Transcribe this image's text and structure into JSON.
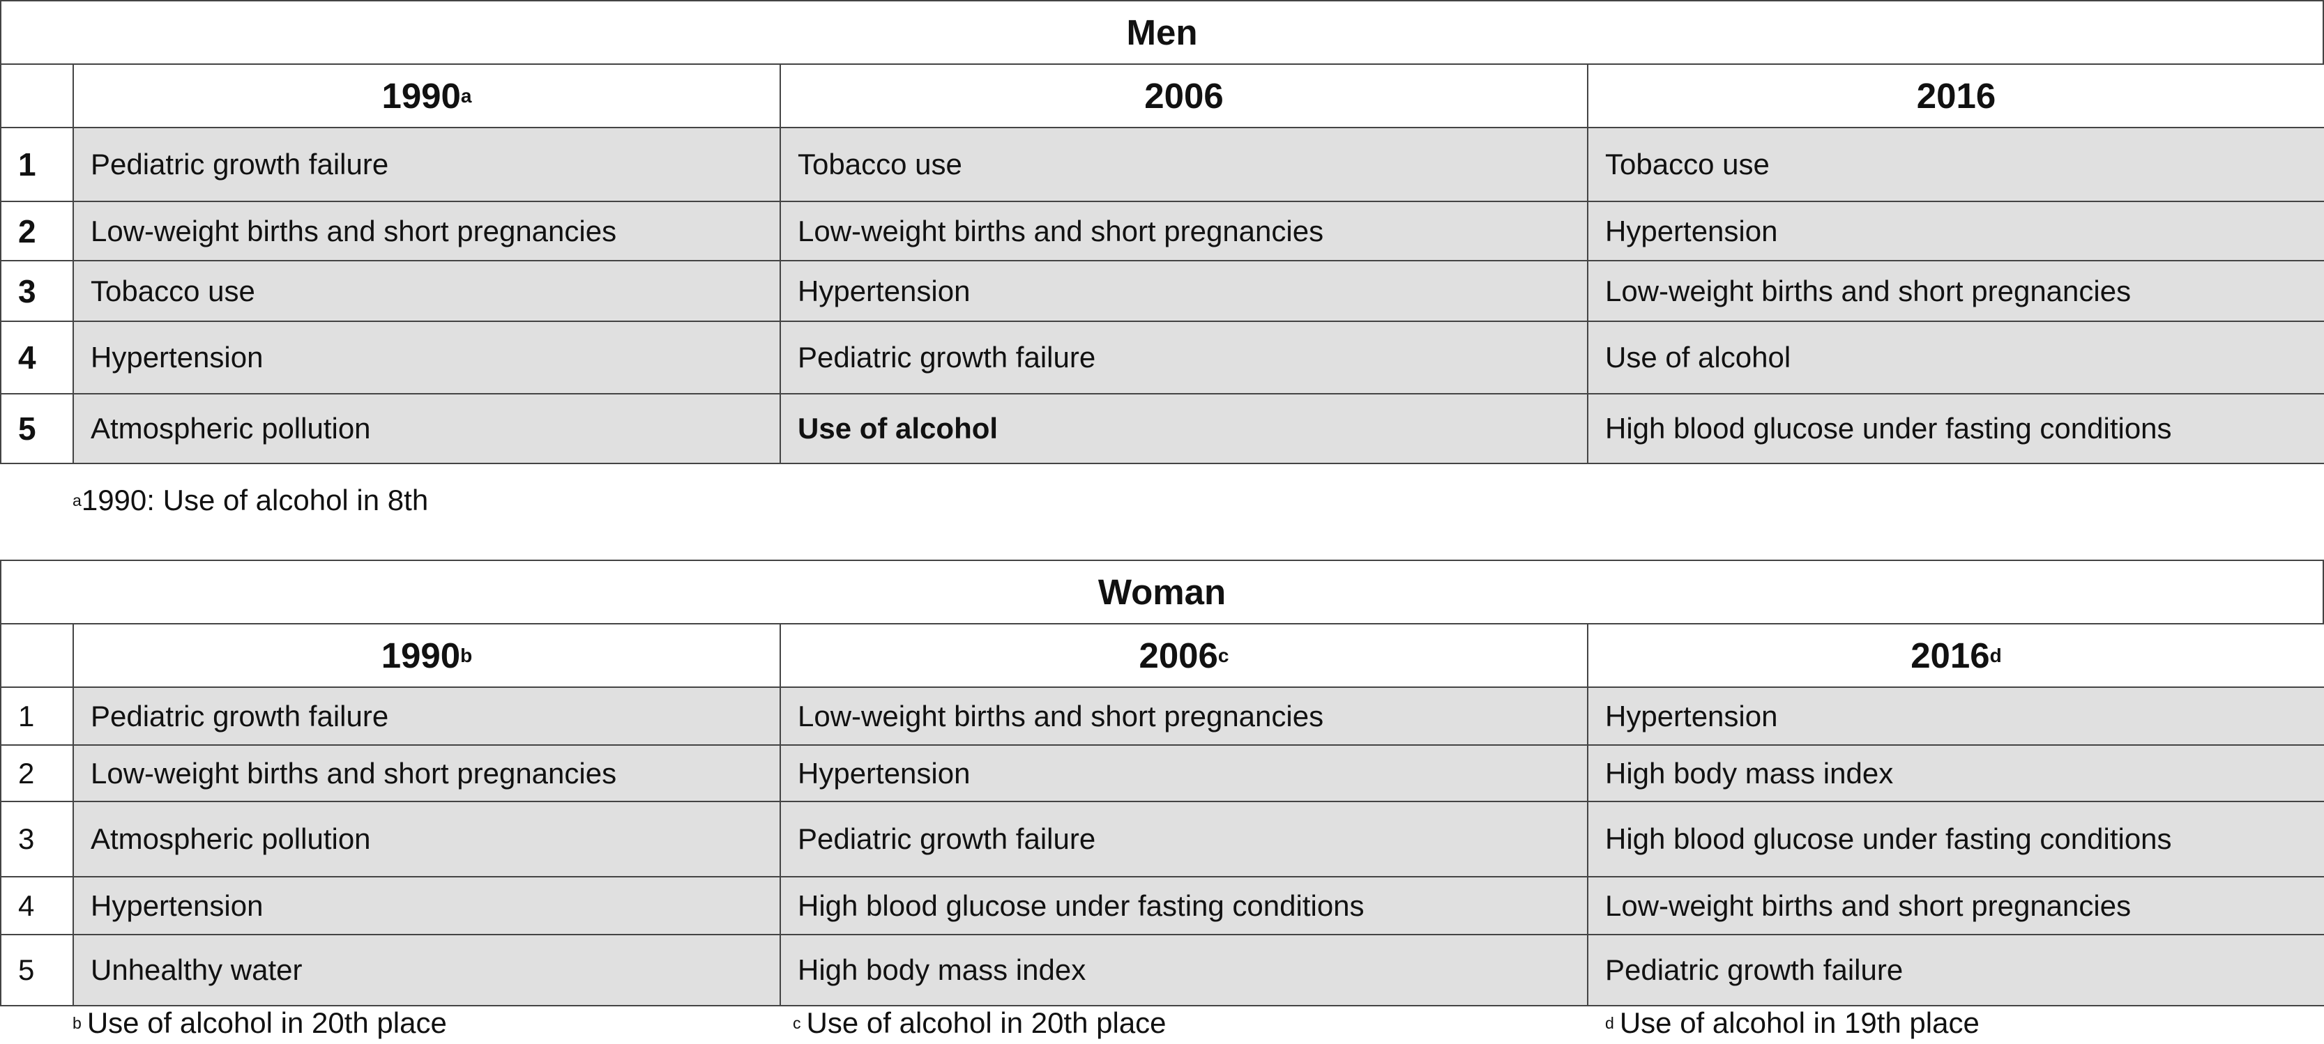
{
  "tables": [
    {
      "title": "Men",
      "rank_bold": true,
      "header": [
        {
          "text": "1990",
          "sup": "a"
        },
        {
          "text": "2006"
        },
        {
          "text": "2016"
        }
      ],
      "rows": [
        {
          "rank": "1",
          "cells": [
            {
              "text": "Pediatric growth failure"
            },
            {
              "text": "Tobacco use"
            },
            {
              "text": "Tobacco use"
            }
          ]
        },
        {
          "rank": "2",
          "cells": [
            {
              "text": "Low-weight births and short pregnancies"
            },
            {
              "text": "Low-weight births and short pregnancies"
            },
            {
              "text": "Hypertension"
            }
          ]
        },
        {
          "rank": "3",
          "cells": [
            {
              "text": "Tobacco use"
            },
            {
              "text": "Hypertension"
            },
            {
              "text": "Low-weight births and short pregnancies"
            }
          ]
        },
        {
          "rank": "4",
          "cells": [
            {
              "text": "Hypertension"
            },
            {
              "text": "Pediatric growth failure"
            },
            {
              "text": "Use of alcohol"
            }
          ]
        },
        {
          "rank": "5",
          "cells": [
            {
              "text": "Atmospheric pollution"
            },
            {
              "text": "Use of alcohol",
              "bold": true
            },
            {
              "text": "High blood glucose under fasting conditions"
            }
          ]
        }
      ],
      "footnotes": [
        {
          "sup": "a",
          "text": "1990: Use of alcohol in 8th"
        }
      ]
    },
    {
      "title": "Woman",
      "rank_bold": false,
      "header": [
        {
          "text": "1990",
          "sup": "b"
        },
        {
          "text": "2006",
          "sup": "c"
        },
        {
          "text": "2016",
          "sup": "d"
        }
      ],
      "rows": [
        {
          "rank": "1",
          "cells": [
            {
              "text": "Pediatric growth failure"
            },
            {
              "text": "Low-weight births and short pregnancies"
            },
            {
              "text": "Hypertension"
            }
          ]
        },
        {
          "rank": "2",
          "cells": [
            {
              "text": "Low-weight births and short pregnancies"
            },
            {
              "text": "Hypertension"
            },
            {
              "text": "High body mass index"
            }
          ]
        },
        {
          "rank": "3",
          "cells": [
            {
              "text": "Atmospheric pollution"
            },
            {
              "text": "Pediatric growth failure"
            },
            {
              "text": "High blood glucose under fasting conditions"
            }
          ]
        },
        {
          "rank": "4",
          "cells": [
            {
              "text": "Hypertension"
            },
            {
              "text": "High blood glucose under fasting conditions"
            },
            {
              "text": "Low-weight births and short pregnancies"
            }
          ]
        },
        {
          "rank": "5",
          "cells": [
            {
              "text": "Unhealthy water"
            },
            {
              "text": "High body mass index"
            },
            {
              "text": "Pediatric growth failure"
            }
          ]
        }
      ],
      "footnotes": [
        {
          "sup": "b",
          "text": "Use of alcohol in 20th place"
        },
        {
          "sup": "c",
          "text": "Use of alcohol in 20th place"
        },
        {
          "sup": "d",
          "text": "Use of alcohol in 19th place"
        }
      ]
    }
  ]
}
